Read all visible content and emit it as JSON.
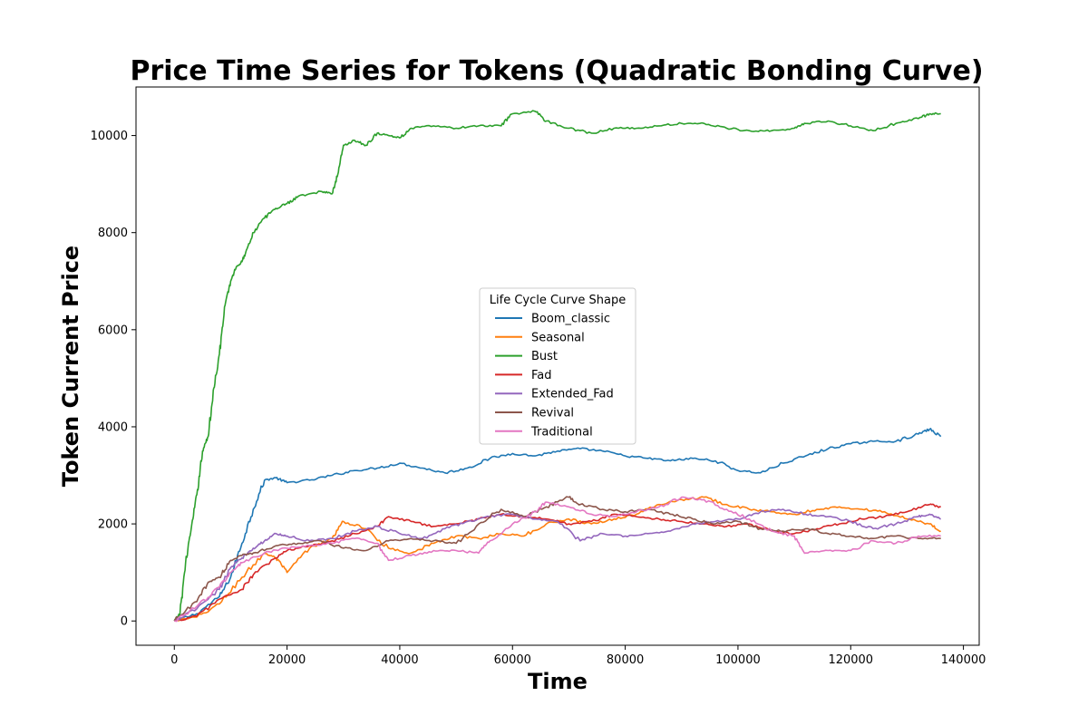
{
  "chart_data": {
    "type": "line",
    "title": "Price Time Series for Tokens (Quadratic Bonding Curve)",
    "xlabel": "Time",
    "ylabel": "Token Current Price",
    "xlim": [
      -6800,
      142800
    ],
    "ylim": [
      -500,
      11000
    ],
    "xticks": [
      0,
      20000,
      40000,
      60000,
      80000,
      100000,
      120000,
      140000
    ],
    "yticks": [
      0,
      2000,
      4000,
      6000,
      8000,
      10000
    ],
    "grid": false,
    "legend": {
      "title": "Life Cycle Curve Shape",
      "placement": "center"
    },
    "series": [
      {
        "name": "Boom_classic",
        "color": "#1f77b4",
        "points": [
          [
            0,
            0
          ],
          [
            4000,
            150
          ],
          [
            8000,
            500
          ],
          [
            10000,
            900
          ],
          [
            12000,
            1600
          ],
          [
            14000,
            2300
          ],
          [
            16000,
            2900
          ],
          [
            18000,
            2950
          ],
          [
            20000,
            2850
          ],
          [
            24000,
            2900
          ],
          [
            28000,
            3000
          ],
          [
            32000,
            3100
          ],
          [
            36000,
            3150
          ],
          [
            40000,
            3250
          ],
          [
            44000,
            3150
          ],
          [
            48000,
            3050
          ],
          [
            52000,
            3150
          ],
          [
            56000,
            3350
          ],
          [
            60000,
            3450
          ],
          [
            64000,
            3400
          ],
          [
            68000,
            3500
          ],
          [
            72000,
            3550
          ],
          [
            76000,
            3500
          ],
          [
            80000,
            3400
          ],
          [
            84000,
            3350
          ],
          [
            88000,
            3300
          ],
          [
            92000,
            3350
          ],
          [
            96000,
            3300
          ],
          [
            100000,
            3100
          ],
          [
            104000,
            3050
          ],
          [
            108000,
            3250
          ],
          [
            112000,
            3400
          ],
          [
            116000,
            3550
          ],
          [
            120000,
            3650
          ],
          [
            124000,
            3700
          ],
          [
            128000,
            3700
          ],
          [
            132000,
            3850
          ],
          [
            134000,
            3950
          ],
          [
            136000,
            3800
          ]
        ]
      },
      {
        "name": "Seasonal",
        "color": "#ff7f0e",
        "points": [
          [
            0,
            0
          ],
          [
            4000,
            80
          ],
          [
            8000,
            350
          ],
          [
            12000,
            900
          ],
          [
            16000,
            1400
          ],
          [
            18000,
            1300
          ],
          [
            20000,
            1000
          ],
          [
            24000,
            1500
          ],
          [
            28000,
            1700
          ],
          [
            30000,
            2050
          ],
          [
            34000,
            1900
          ],
          [
            38000,
            1500
          ],
          [
            42000,
            1400
          ],
          [
            46000,
            1600
          ],
          [
            50000,
            1750
          ],
          [
            54000,
            1700
          ],
          [
            58000,
            1800
          ],
          [
            62000,
            1750
          ],
          [
            66000,
            2000
          ],
          [
            70000,
            2100
          ],
          [
            74000,
            2000
          ],
          [
            78000,
            2100
          ],
          [
            82000,
            2200
          ],
          [
            86000,
            2400
          ],
          [
            90000,
            2500
          ],
          [
            94000,
            2550
          ],
          [
            98000,
            2400
          ],
          [
            102000,
            2300
          ],
          [
            106000,
            2250
          ],
          [
            110000,
            2200
          ],
          [
            114000,
            2300
          ],
          [
            118000,
            2350
          ],
          [
            122000,
            2300
          ],
          [
            126000,
            2250
          ],
          [
            130000,
            2100
          ],
          [
            134000,
            2000
          ],
          [
            136000,
            1850
          ]
        ]
      },
      {
        "name": "Bust",
        "color": "#2ca02c",
        "points": [
          [
            0,
            0
          ],
          [
            1000,
            150
          ],
          [
            2000,
            1200
          ],
          [
            3000,
            1900
          ],
          [
            4000,
            2600
          ],
          [
            5000,
            3500
          ],
          [
            6000,
            3800
          ],
          [
            7000,
            4800
          ],
          [
            8000,
            5500
          ],
          [
            9000,
            6500
          ],
          [
            10000,
            7000
          ],
          [
            11000,
            7300
          ],
          [
            12000,
            7400
          ],
          [
            13000,
            7700
          ],
          [
            14000,
            8000
          ],
          [
            16000,
            8300
          ],
          [
            18000,
            8500
          ],
          [
            20000,
            8600
          ],
          [
            22000,
            8750
          ],
          [
            26000,
            8850
          ],
          [
            28000,
            8800
          ],
          [
            29000,
            9200
          ],
          [
            30000,
            9800
          ],
          [
            32000,
            9900
          ],
          [
            34000,
            9800
          ],
          [
            36000,
            10050
          ],
          [
            38000,
            10000
          ],
          [
            40000,
            9950
          ],
          [
            42000,
            10150
          ],
          [
            46000,
            10200
          ],
          [
            50000,
            10150
          ],
          [
            54000,
            10200
          ],
          [
            58000,
            10200
          ],
          [
            60000,
            10450
          ],
          [
            64000,
            10500
          ],
          [
            66000,
            10300
          ],
          [
            70000,
            10150
          ],
          [
            74000,
            10050
          ],
          [
            78000,
            10150
          ],
          [
            82000,
            10150
          ],
          [
            86000,
            10200
          ],
          [
            90000,
            10250
          ],
          [
            94000,
            10250
          ],
          [
            98000,
            10150
          ],
          [
            102000,
            10100
          ],
          [
            106000,
            10100
          ],
          [
            110000,
            10150
          ],
          [
            112000,
            10250
          ],
          [
            116000,
            10300
          ],
          [
            120000,
            10200
          ],
          [
            124000,
            10100
          ],
          [
            128000,
            10250
          ],
          [
            132000,
            10350
          ],
          [
            134000,
            10450
          ],
          [
            136000,
            10450
          ]
        ]
      },
      {
        "name": "Fad",
        "color": "#d62728",
        "points": [
          [
            0,
            0
          ],
          [
            4000,
            100
          ],
          [
            8000,
            450
          ],
          [
            12000,
            650
          ],
          [
            14000,
            950
          ],
          [
            18000,
            1300
          ],
          [
            20000,
            1450
          ],
          [
            24000,
            1550
          ],
          [
            28000,
            1650
          ],
          [
            32000,
            1800
          ],
          [
            36000,
            1950
          ],
          [
            38000,
            2150
          ],
          [
            42000,
            2050
          ],
          [
            46000,
            1950
          ],
          [
            50000,
            2000
          ],
          [
            54000,
            2100
          ],
          [
            58000,
            2200
          ],
          [
            62000,
            2150
          ],
          [
            66000,
            2100
          ],
          [
            70000,
            2000
          ],
          [
            74000,
            2050
          ],
          [
            78000,
            2200
          ],
          [
            82000,
            2150
          ],
          [
            86000,
            2100
          ],
          [
            90000,
            2050
          ],
          [
            94000,
            2000
          ],
          [
            98000,
            1950
          ],
          [
            102000,
            2000
          ],
          [
            106000,
            1850
          ],
          [
            110000,
            1800
          ],
          [
            114000,
            1900
          ],
          [
            118000,
            2000
          ],
          [
            122000,
            2100
          ],
          [
            126000,
            2150
          ],
          [
            130000,
            2250
          ],
          [
            134000,
            2400
          ],
          [
            136000,
            2350
          ]
        ]
      },
      {
        "name": "Extended_Fad",
        "color": "#9467bd",
        "points": [
          [
            0,
            0
          ],
          [
            4000,
            250
          ],
          [
            8000,
            650
          ],
          [
            10000,
            1100
          ],
          [
            12000,
            1300
          ],
          [
            14000,
            1500
          ],
          [
            16000,
            1650
          ],
          [
            18000,
            1800
          ],
          [
            20000,
            1750
          ],
          [
            24000,
            1650
          ],
          [
            28000,
            1700
          ],
          [
            32000,
            1850
          ],
          [
            36000,
            1950
          ],
          [
            40000,
            1800
          ],
          [
            44000,
            1700
          ],
          [
            48000,
            1900
          ],
          [
            52000,
            2050
          ],
          [
            56000,
            2150
          ],
          [
            60000,
            2200
          ],
          [
            64000,
            2100
          ],
          [
            68000,
            2050
          ],
          [
            72000,
            1650
          ],
          [
            76000,
            1800
          ],
          [
            80000,
            1750
          ],
          [
            84000,
            1800
          ],
          [
            88000,
            1850
          ],
          [
            92000,
            2000
          ],
          [
            96000,
            2050
          ],
          [
            100000,
            2100
          ],
          [
            104000,
            2250
          ],
          [
            108000,
            2300
          ],
          [
            112000,
            2200
          ],
          [
            116000,
            2150
          ],
          [
            120000,
            2050
          ],
          [
            124000,
            1900
          ],
          [
            128000,
            2000
          ],
          [
            132000,
            2150
          ],
          [
            134000,
            2200
          ],
          [
            136000,
            2100
          ]
        ]
      },
      {
        "name": "Revival",
        "color": "#8c564b",
        "points": [
          [
            0,
            0
          ],
          [
            4000,
            400
          ],
          [
            6000,
            800
          ],
          [
            8000,
            900
          ],
          [
            10000,
            1250
          ],
          [
            12000,
            1350
          ],
          [
            14000,
            1400
          ],
          [
            18000,
            1550
          ],
          [
            22000,
            1600
          ],
          [
            26000,
            1650
          ],
          [
            30000,
            1500
          ],
          [
            34000,
            1450
          ],
          [
            38000,
            1650
          ],
          [
            42000,
            1700
          ],
          [
            46000,
            1650
          ],
          [
            50000,
            1600
          ],
          [
            54000,
            2000
          ],
          [
            58000,
            2300
          ],
          [
            62000,
            2150
          ],
          [
            66000,
            2350
          ],
          [
            70000,
            2550
          ],
          [
            72000,
            2400
          ],
          [
            76000,
            2300
          ],
          [
            80000,
            2250
          ],
          [
            84000,
            2300
          ],
          [
            88000,
            2200
          ],
          [
            92000,
            2100
          ],
          [
            96000,
            2000
          ],
          [
            100000,
            2050
          ],
          [
            104000,
            1900
          ],
          [
            108000,
            1850
          ],
          [
            112000,
            1900
          ],
          [
            116000,
            1800
          ],
          [
            120000,
            1750
          ],
          [
            124000,
            1700
          ],
          [
            128000,
            1750
          ],
          [
            132000,
            1700
          ],
          [
            136000,
            1700
          ]
        ]
      },
      {
        "name": "Traditional",
        "color": "#e377c2",
        "points": [
          [
            0,
            0
          ],
          [
            4000,
            300
          ],
          [
            8000,
            700
          ],
          [
            10000,
            1000
          ],
          [
            12000,
            1200
          ],
          [
            16000,
            1400
          ],
          [
            20000,
            1500
          ],
          [
            24000,
            1550
          ],
          [
            28000,
            1600
          ],
          [
            32000,
            1700
          ],
          [
            36000,
            1600
          ],
          [
            38000,
            1250
          ],
          [
            42000,
            1350
          ],
          [
            46000,
            1450
          ],
          [
            50000,
            1450
          ],
          [
            54000,
            1400
          ],
          [
            56000,
            1650
          ],
          [
            60000,
            2000
          ],
          [
            64000,
            2250
          ],
          [
            66000,
            2450
          ],
          [
            70000,
            2350
          ],
          [
            74000,
            2200
          ],
          [
            78000,
            2150
          ],
          [
            82000,
            2250
          ],
          [
            86000,
            2350
          ],
          [
            90000,
            2550
          ],
          [
            94000,
            2500
          ],
          [
            98000,
            2300
          ],
          [
            102000,
            2100
          ],
          [
            106000,
            1850
          ],
          [
            110000,
            1750
          ],
          [
            112000,
            1400
          ],
          [
            116000,
            1450
          ],
          [
            120000,
            1450
          ],
          [
            124000,
            1650
          ],
          [
            128000,
            1600
          ],
          [
            132000,
            1750
          ],
          [
            136000,
            1750
          ]
        ]
      }
    ]
  }
}
